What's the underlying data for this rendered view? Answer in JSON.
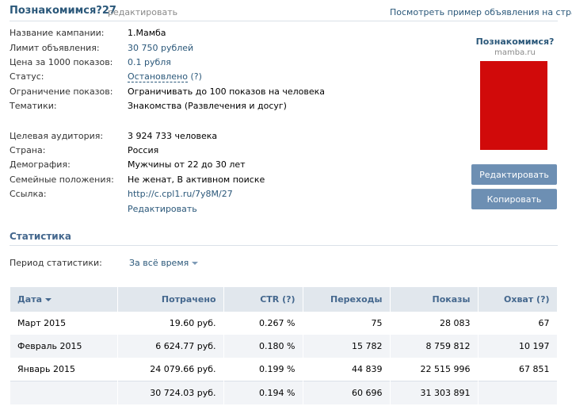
{
  "header": {
    "title": "Познакомимся?27",
    "edit_link": "редактировать",
    "preview_link": "Посмотреть пример объявления на странице"
  },
  "details": [
    {
      "label": "Название кампании:",
      "value": "1.Мамба"
    },
    {
      "label": "Лимит объявления:",
      "value": "30 750 рублей"
    },
    {
      "label": "Цена за 1000 показов:",
      "value": "0.1 рубля"
    },
    {
      "label": "Статус:",
      "value": "Остановлено",
      "hint": "(?)"
    },
    {
      "label": "Ограничение показов:",
      "value": "Ограничивать до 100 показов на человека"
    },
    {
      "label": "Тематики:",
      "value": "Знакомства (Развлечения и досуг)"
    }
  ],
  "audience": [
    {
      "label": "Целевая аудитория:",
      "value": "3 924 733 человека"
    },
    {
      "label": "Страна:",
      "value": "Россия"
    },
    {
      "label": "Демография:",
      "value": "Мужчины от 22 до 30 лет"
    },
    {
      "label": "Семейные положения:",
      "value": "Не женат, В активном поиске"
    },
    {
      "label": "Ссылка:",
      "value": "http://c.cpl1.ru/7y8M/27"
    }
  ],
  "audience_edit": "Редактировать",
  "ad_preview": {
    "title": "Познакомимся?",
    "domain": "mamba.ru",
    "image_color": "#d10a0a"
  },
  "buttons": {
    "edit": "Редактировать",
    "copy": "Копировать"
  },
  "stats": {
    "title": "Статистика",
    "period_label": "Период статистики:",
    "period_value": "За всё время",
    "columns": [
      "Дата",
      "Потрачено",
      "CTR (?)",
      "Переходы",
      "Показы",
      "Охват (?)"
    ],
    "rows": [
      [
        "Март 2015",
        "19.60 руб.",
        "0.267 %",
        "75",
        "28 083",
        "67"
      ],
      [
        "Февраль 2015",
        "6 624.77 руб.",
        "0.180 %",
        "15 782",
        "8 759 812",
        "10 197"
      ],
      [
        "Январь 2015",
        "24 079.66 руб.",
        "0.199 %",
        "44 839",
        "22 515 996",
        "67 851"
      ]
    ],
    "total": [
      "",
      "30 724.03 руб.",
      "0.194 %",
      "60 696",
      "31 303 891",
      ""
    ]
  }
}
